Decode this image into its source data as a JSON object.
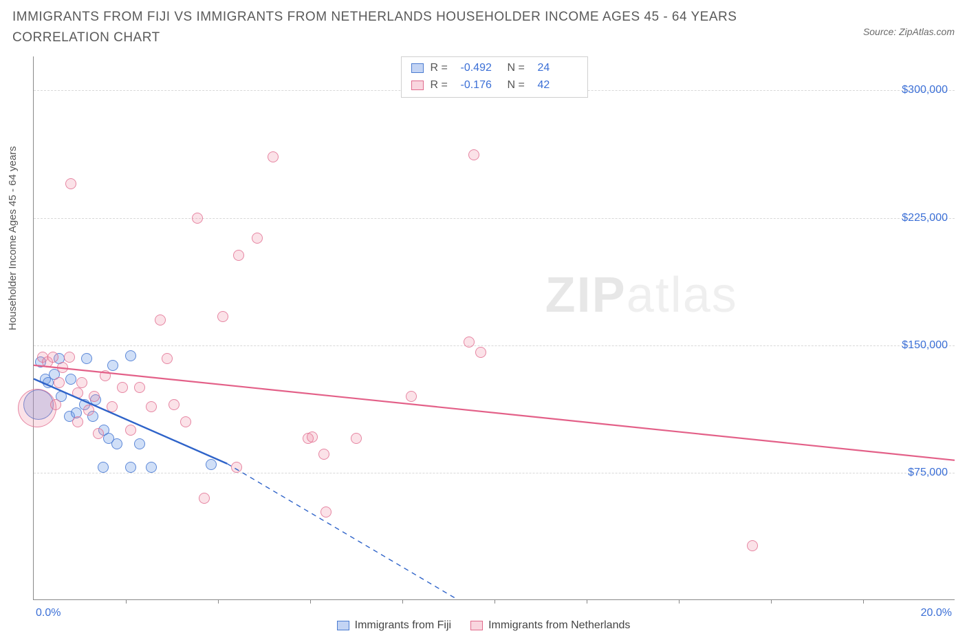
{
  "header": {
    "title": "IMMIGRANTS FROM FIJI VS IMMIGRANTS FROM NETHERLANDS HOUSEHOLDER INCOME AGES 45 - 64 YEARS CORRELATION CHART",
    "source": "Source: ZipAtlas.com"
  },
  "chart": {
    "type": "scatter",
    "y_axis_title": "Householder Income Ages 45 - 64 years",
    "x_axis": {
      "min": 0.0,
      "max": 20.0,
      "min_label": "0.0%",
      "max_label": "20.0%",
      "tick_positions_pct": [
        10,
        20,
        30,
        40,
        50,
        60,
        70,
        80,
        90
      ]
    },
    "y_axis": {
      "min": 0,
      "max": 320000,
      "gridlines": [
        {
          "value": 75000,
          "label": "$75,000"
        },
        {
          "value": 150000,
          "label": "$150,000"
        },
        {
          "value": 225000,
          "label": "$225,000"
        },
        {
          "value": 300000,
          "label": "$300,000"
        }
      ]
    },
    "colors": {
      "blue_fill": "rgba(100,150,230,0.30)",
      "blue_stroke": "#4a7bd0",
      "pink_fill": "rgba(240,140,165,0.25)",
      "pink_stroke": "#e06a8c",
      "grid": "#d8d8d8",
      "axis": "#888",
      "tick_label": "#3b6fd6",
      "text": "#555"
    },
    "legend_top": {
      "rows": [
        {
          "swatch": "blue",
          "r_label": "R =",
          "r_value": "-0.492",
          "n_label": "N =",
          "n_value": "24"
        },
        {
          "swatch": "pink",
          "r_label": "R =",
          "r_value": "-0.176",
          "n_label": "N =",
          "n_value": "42"
        }
      ]
    },
    "legend_bottom": {
      "items": [
        {
          "swatch": "blue",
          "label": "Immigrants from Fiji"
        },
        {
          "swatch": "pink",
          "label": "Immigrants from Netherlands"
        }
      ]
    },
    "watermark": {
      "part1": "ZIP",
      "part2": "atlas"
    },
    "trend_lines": {
      "blue": {
        "x1_pct": 0,
        "y1_val": 130000,
        "x2_pct": 21.0,
        "y2_val": 80000,
        "solid_until_pct": 21.0,
        "dash_to_pct": 46.0,
        "dash_to_val": 0,
        "stroke": "#2e63c9",
        "width": 2.4
      },
      "pink": {
        "x1_pct": 0,
        "y1_val": 138000,
        "x2_pct": 100,
        "y2_val": 82000,
        "stroke": "#e36088",
        "width": 2.2
      }
    },
    "series": [
      {
        "name": "fiji",
        "cls": "blue",
        "points": [
          {
            "x": 0.1,
            "y": 115000,
            "r": 22
          },
          {
            "x": 0.15,
            "y": 140000,
            "r": 8
          },
          {
            "x": 0.25,
            "y": 130000,
            "r": 8
          },
          {
            "x": 0.32,
            "y": 128000,
            "r": 8
          },
          {
            "x": 0.45,
            "y": 133000,
            "r": 8
          },
          {
            "x": 0.55,
            "y": 142000,
            "r": 8
          },
          {
            "x": 0.6,
            "y": 120000,
            "r": 8
          },
          {
            "x": 0.78,
            "y": 108000,
            "r": 8
          },
          {
            "x": 0.8,
            "y": 130000,
            "r": 8
          },
          {
            "x": 0.92,
            "y": 110000,
            "r": 8
          },
          {
            "x": 1.1,
            "y": 115000,
            "r": 8
          },
          {
            "x": 1.15,
            "y": 142000,
            "r": 8
          },
          {
            "x": 1.28,
            "y": 108000,
            "r": 8
          },
          {
            "x": 1.35,
            "y": 118000,
            "r": 8
          },
          {
            "x": 1.52,
            "y": 100000,
            "r": 8
          },
          {
            "x": 1.62,
            "y": 95000,
            "r": 8
          },
          {
            "x": 1.72,
            "y": 138000,
            "r": 8
          },
          {
            "x": 1.8,
            "y": 92000,
            "r": 8
          },
          {
            "x": 2.1,
            "y": 144000,
            "r": 8
          },
          {
            "x": 2.3,
            "y": 92000,
            "r": 8
          },
          {
            "x": 2.55,
            "y": 78000,
            "r": 8
          },
          {
            "x": 1.5,
            "y": 78000,
            "r": 8
          },
          {
            "x": 3.85,
            "y": 80000,
            "r": 8
          },
          {
            "x": 2.1,
            "y": 78000,
            "r": 8
          }
        ]
      },
      {
        "name": "netherlands",
        "cls": "pink",
        "points": [
          {
            "x": 0.08,
            "y": 113000,
            "r": 28
          },
          {
            "x": 0.2,
            "y": 143000,
            "r": 8
          },
          {
            "x": 0.3,
            "y": 140000,
            "r": 8
          },
          {
            "x": 0.42,
            "y": 143000,
            "r": 8
          },
          {
            "x": 0.55,
            "y": 128000,
            "r": 8
          },
          {
            "x": 0.62,
            "y": 137000,
            "r": 8
          },
          {
            "x": 0.78,
            "y": 143000,
            "r": 8
          },
          {
            "x": 0.8,
            "y": 245000,
            "r": 8
          },
          {
            "x": 0.95,
            "y": 122000,
            "r": 8
          },
          {
            "x": 1.05,
            "y": 128000,
            "r": 8
          },
          {
            "x": 1.2,
            "y": 112000,
            "r": 8
          },
          {
            "x": 1.32,
            "y": 120000,
            "r": 8
          },
          {
            "x": 1.55,
            "y": 132000,
            "r": 8
          },
          {
            "x": 1.7,
            "y": 114000,
            "r": 8
          },
          {
            "x": 1.92,
            "y": 125000,
            "r": 8
          },
          {
            "x": 2.1,
            "y": 100000,
            "r": 8
          },
          {
            "x": 2.3,
            "y": 125000,
            "r": 8
          },
          {
            "x": 2.55,
            "y": 114000,
            "r": 8
          },
          {
            "x": 2.75,
            "y": 165000,
            "r": 8
          },
          {
            "x": 3.05,
            "y": 115000,
            "r": 8
          },
          {
            "x": 3.3,
            "y": 105000,
            "r": 8
          },
          {
            "x": 3.55,
            "y": 225000,
            "r": 8
          },
          {
            "x": 3.7,
            "y": 60000,
            "r": 8
          },
          {
            "x": 4.1,
            "y": 167000,
            "r": 8
          },
          {
            "x": 4.4,
            "y": 78000,
            "r": 8
          },
          {
            "x": 4.45,
            "y": 203000,
            "r": 8
          },
          {
            "x": 4.85,
            "y": 213000,
            "r": 8
          },
          {
            "x": 5.2,
            "y": 261000,
            "r": 8
          },
          {
            "x": 5.95,
            "y": 95000,
            "r": 8
          },
          {
            "x": 6.05,
            "y": 96000,
            "r": 8
          },
          {
            "x": 6.3,
            "y": 86000,
            "r": 8
          },
          {
            "x": 6.35,
            "y": 52000,
            "r": 8
          },
          {
            "x": 7.0,
            "y": 95000,
            "r": 8
          },
          {
            "x": 8.2,
            "y": 120000,
            "r": 8
          },
          {
            "x": 9.45,
            "y": 152000,
            "r": 8
          },
          {
            "x": 9.55,
            "y": 262000,
            "r": 8
          },
          {
            "x": 9.7,
            "y": 146000,
            "r": 8
          },
          {
            "x": 15.6,
            "y": 32000,
            "r": 8
          },
          {
            "x": 2.9,
            "y": 142000,
            "r": 8
          },
          {
            "x": 1.4,
            "y": 98000,
            "r": 8
          },
          {
            "x": 0.95,
            "y": 105000,
            "r": 8
          },
          {
            "x": 0.48,
            "y": 115000,
            "r": 8
          }
        ]
      }
    ]
  }
}
